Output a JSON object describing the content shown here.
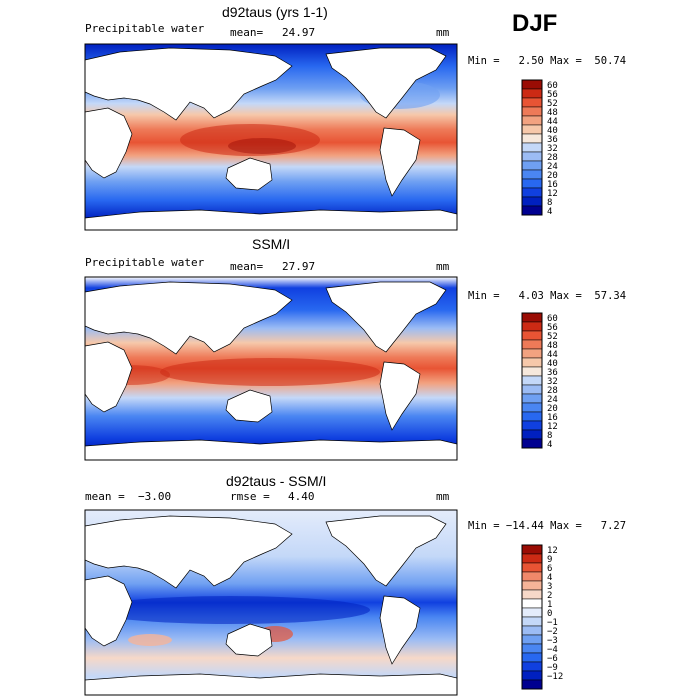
{
  "season": "DJF",
  "colors": {
    "land": "#ffffff",
    "frame": "#000000",
    "field_scale": [
      "#000090",
      "#0020c0",
      "#1040e0",
      "#2868f0",
      "#4a86f2",
      "#6fa0f2",
      "#9cbcf4",
      "#c4d8f8",
      "#f6e8dc",
      "#f6c8aa",
      "#f2a280",
      "#ee7a58",
      "#e85434",
      "#cc2a14",
      "#9a0c04"
    ],
    "diff_scale": [
      "#000090",
      "#0020c0",
      "#1040e0",
      "#2868f0",
      "#4a86f2",
      "#6fa0f2",
      "#9cbcf4",
      "#c4d8f8",
      "#e4ecfb",
      "#ffffff",
      "#f6d8c8",
      "#f6b498",
      "#f0886a",
      "#e85434",
      "#cc2a14",
      "#9a0c04"
    ]
  },
  "chart_data": [
    {
      "type": "heatmap",
      "title": "d92taus (yrs 1-1)",
      "variable": "Precipitable water",
      "stat_label": "mean=",
      "stat_value": "24.97",
      "units": "mm",
      "min_max": "Min =   2.50 Max =  50.74",
      "min": 2.5,
      "max": 50.74,
      "colorbar": [
        "60",
        "56",
        "52",
        "48",
        "44",
        "40",
        "36",
        "32",
        "28",
        "24",
        "20",
        "16",
        "12",
        "8",
        "4"
      ],
      "x": "longitude",
      "y": "latitude",
      "xlim": [
        20,
        380
      ],
      "ylim": [
        -90,
        90
      ]
    },
    {
      "type": "heatmap",
      "title": "SSM/I",
      "variable": "Precipitable water",
      "stat_label": "mean=",
      "stat_value": "27.97",
      "units": "mm",
      "min_max": "Min =   4.03 Max =  57.34",
      "min": 4.03,
      "max": 57.34,
      "colorbar": [
        "60",
        "56",
        "52",
        "48",
        "44",
        "40",
        "36",
        "32",
        "28",
        "24",
        "20",
        "16",
        "12",
        "8",
        "4"
      ],
      "x": "longitude",
      "y": "latitude",
      "xlim": [
        20,
        380
      ],
      "ylim": [
        -90,
        90
      ]
    },
    {
      "type": "heatmap",
      "title": "d92taus - SSM/I",
      "variable": "",
      "stat_left": "mean =  −3.00",
      "stat_label": "rmse =",
      "stat_value": "4.40",
      "units": "mm",
      "min_max": "Min = −14.44 Max =   7.27",
      "min": -14.44,
      "max": 7.27,
      "colorbar": [
        "12",
        "9",
        "6",
        "4",
        "3",
        "2",
        "1",
        "0",
        "−1",
        "−2",
        "−3",
        "−4",
        "−6",
        "−9",
        "−12"
      ],
      "x": "longitude",
      "y": "latitude",
      "xlim": [
        20,
        380
      ],
      "ylim": [
        -90,
        90
      ]
    }
  ]
}
